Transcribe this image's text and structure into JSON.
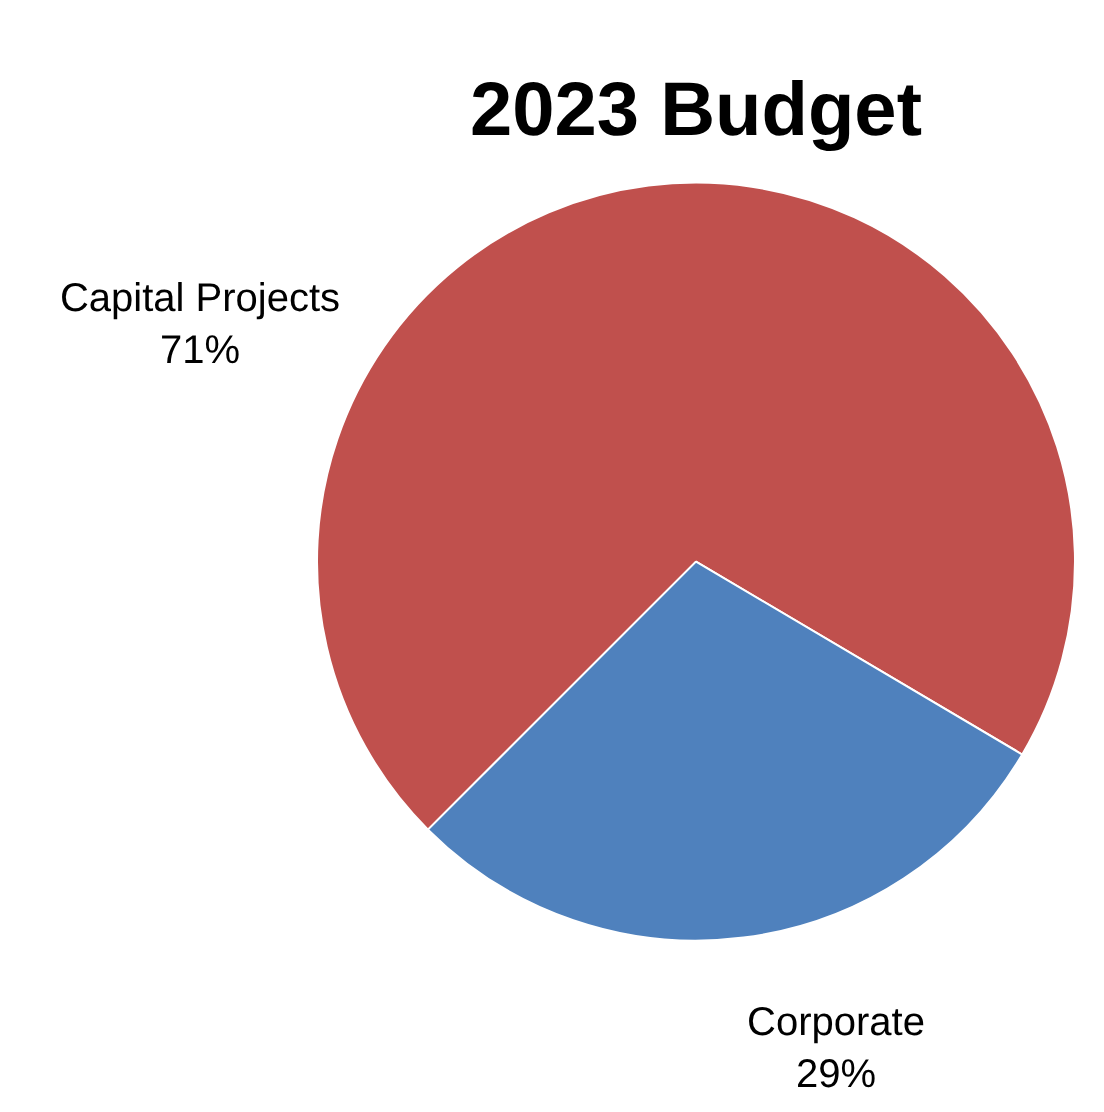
{
  "chart_data": {
    "type": "pie",
    "title": "2023 Budget",
    "categories": [
      "Capital Projects",
      "Corporate"
    ],
    "values": [
      71,
      29
    ],
    "colors": [
      "#c0504d",
      "#4f81bd"
    ],
    "value_labels": [
      "71%",
      "29%"
    ],
    "legend": false
  }
}
